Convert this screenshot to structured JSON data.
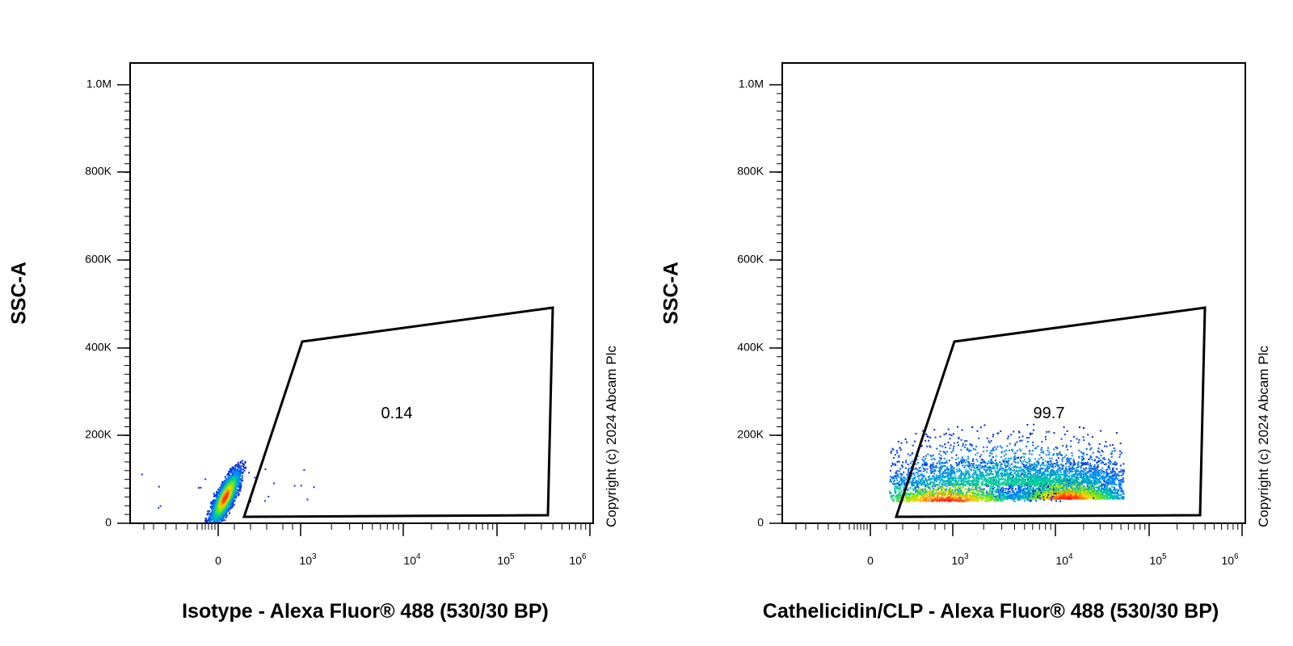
{
  "chart_data": [
    {
      "type": "scatter",
      "subtype": "flow-cytometry-density-plot",
      "xlabel": "Isotype - Alexa Fluor® 488 (530/30 BP)",
      "ylabel": "SSC-A",
      "x_scale": "biexponential",
      "y_scale": "linear",
      "ylim": [
        0,
        1050000
      ],
      "y_ticks": [
        "0",
        "200K",
        "400K",
        "600K",
        "800K",
        "1.0M"
      ],
      "x_ticks": [
        {
          "base": "0",
          "exp": ""
        },
        {
          "base": "10",
          "exp": "3"
        },
        {
          "base": "10",
          "exp": "4"
        },
        {
          "base": "10",
          "exp": "5"
        },
        {
          "base": "10",
          "exp": "6"
        }
      ],
      "gate": {
        "label": "0.14",
        "vertices": [
          [
            200,
            10000
          ],
          [
            1000,
            415000
          ],
          [
            400000,
            490000
          ],
          [
            350000,
            15000
          ]
        ]
      },
      "populations": [
        {
          "x_center": 0,
          "y_center": 55000,
          "note": "main negative population"
        }
      ],
      "annotation": "Copyright (c) 2024 Abcam Plc"
    },
    {
      "type": "scatter",
      "subtype": "flow-cytometry-density-plot",
      "xlabel": "Cathelicidin/CLP - Alexa Fluor® 488 (530/30 BP)",
      "ylabel": "SSC-A",
      "x_scale": "biexponential",
      "y_scale": "linear",
      "ylim": [
        0,
        1050000
      ],
      "y_ticks": [
        "0",
        "200K",
        "400K",
        "600K",
        "800K",
        "1.0M"
      ],
      "x_ticks": [
        {
          "base": "0",
          "exp": ""
        },
        {
          "base": "10",
          "exp": "3"
        },
        {
          "base": "10",
          "exp": "4"
        },
        {
          "base": "10",
          "exp": "5"
        },
        {
          "base": "10",
          "exp": "6"
        }
      ],
      "gate": {
        "label": "99.7",
        "vertices": [
          [
            200,
            10000
          ],
          [
            1000,
            415000
          ],
          [
            400000,
            490000
          ],
          [
            350000,
            15000
          ]
        ]
      },
      "populations": [
        {
          "x_center": 10000,
          "y_center": 55000,
          "note": "main positive population"
        }
      ],
      "annotation": "Copyright (c) 2024 Abcam Plc"
    }
  ]
}
